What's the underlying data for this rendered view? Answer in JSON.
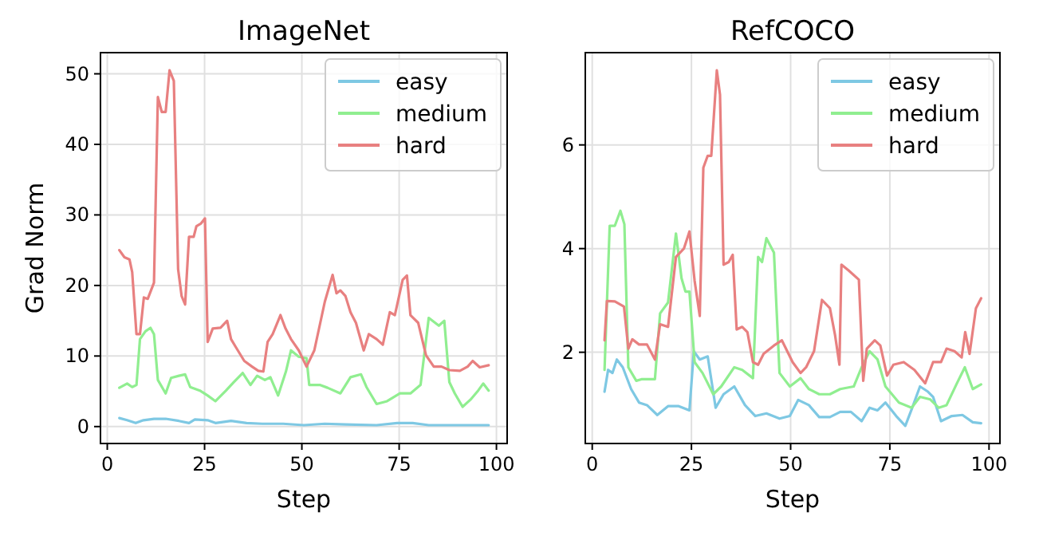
{
  "chart_data": [
    {
      "type": "line",
      "title": "ImageNet",
      "xlabel": "Step",
      "ylabel": "Grad Norm",
      "xlim": [
        -1.75,
        102.75
      ],
      "ylim": [
        -2.4,
        53
      ],
      "xticks": [
        0,
        25,
        50,
        75,
        100
      ],
      "yticks": [
        0,
        10,
        20,
        30,
        40,
        50
      ],
      "grid": true,
      "legend": "top right",
      "series": [
        {
          "name": "easy",
          "color": "#7ec8e3",
          "x": [
            3.1,
            5.1,
            7.3,
            9.3,
            12,
            15,
            18.4,
            21,
            22.5,
            25.8,
            27.8,
            31.8,
            35.8,
            39.8,
            45.2,
            50.5,
            55.9,
            61.2,
            69.2,
            74.5,
            78.5,
            82.6,
            90.6,
            98
          ],
          "values": [
            1.2,
            0.9,
            0.5,
            0.9,
            1.1,
            1.1,
            0.8,
            0.5,
            1,
            0.9,
            0.5,
            0.8,
            0.5,
            0.4,
            0.4,
            0.2,
            0.4,
            0.3,
            0.2,
            0.5,
            0.5,
            0.2,
            0.2,
            0.2
          ]
        },
        {
          "name": "medium",
          "color": "#90ee90",
          "x": [
            3.1,
            5.1,
            6.4,
            7.5,
            8.4,
            9.8,
            11.1,
            12,
            13,
            15,
            16.4,
            18.4,
            20,
            21.3,
            23.8,
            25.8,
            27.8,
            30.5,
            32.5,
            34.8,
            36.8,
            38.5,
            40.5,
            41.9,
            43.9,
            45.9,
            47.2,
            49.2,
            51.2,
            51.9,
            54.6,
            56.6,
            59.9,
            62.5,
            65.2,
            66.6,
            69.2,
            71.9,
            75.2,
            77.9,
            80.5,
            82.6,
            85.2,
            86.6,
            87.9,
            89.3,
            91.3,
            93.3,
            95.3,
            96.6,
            98
          ],
          "values": [
            5.5,
            6.1,
            5.6,
            5.9,
            12.4,
            13.5,
            14,
            13.1,
            6.6,
            4.7,
            6.9,
            7.2,
            7.4,
            5.6,
            5.1,
            4.4,
            3.6,
            5.1,
            6.3,
            7.6,
            5.9,
            7.2,
            6.6,
            7,
            4.4,
            7.8,
            10.8,
            9.9,
            9.7,
            5.9,
            5.9,
            5.5,
            4.7,
            7,
            7.4,
            5.6,
            3.2,
            3.6,
            4.7,
            4.7,
            5.9,
            15.4,
            14.3,
            15,
            6.3,
            4.7,
            2.8,
            3.8,
            5.1,
            6.1,
            5.1
          ]
        },
        {
          "name": "hard",
          "color": "#e88080",
          "x": [
            3.1,
            4.4,
            5.7,
            6.4,
            7.5,
            8.4,
            9.4,
            10.4,
            12,
            13,
            14,
            15,
            16,
            17.1,
            18.2,
            19.1,
            20,
            21,
            22.2,
            22.9,
            24.1,
            25.1,
            25.8,
            27.1,
            29.1,
            30.8,
            31.8,
            33.1,
            35.2,
            37.2,
            38.8,
            40.1,
            41.2,
            42.5,
            44.5,
            45.8,
            47.2,
            49.2,
            51.2,
            53.2,
            55.9,
            57.9,
            58.9,
            59.9,
            61.2,
            62.5,
            63.9,
            65.9,
            67.2,
            69.2,
            70.8,
            72.6,
            73.9,
            75.9,
            77,
            77.9,
            79.9,
            81.9,
            83.9,
            85.9,
            87.9,
            90.6,
            92.6,
            93.9,
            95.7,
            98
          ],
          "values": [
            25,
            24,
            23.7,
            21.9,
            13.1,
            13.1,
            18.3,
            18.1,
            20.4,
            46.7,
            44.6,
            44.6,
            50.5,
            49,
            22.3,
            18.5,
            17.3,
            26.9,
            26.9,
            28.4,
            28.8,
            29.5,
            12,
            13.9,
            14,
            15,
            12.4,
            11.2,
            9.3,
            8.5,
            7.9,
            7.8,
            12,
            13.1,
            15.8,
            13.9,
            12.4,
            10.8,
            8.5,
            10.8,
            17.7,
            21.5,
            18.9,
            19.3,
            18.5,
            16.2,
            14.7,
            10.8,
            13.1,
            12.4,
            11.6,
            16.2,
            15.8,
            20.8,
            21.4,
            15.8,
            14.7,
            10.1,
            8.5,
            8.5,
            8,
            7.9,
            8.5,
            9.3,
            8.4,
            8.7
          ]
        }
      ]
    },
    {
      "type": "line",
      "title": "RefCOCO",
      "xlabel": "Step",
      "xlim": [
        -1.75,
        102.75
      ],
      "ylim": [
        0.24,
        7.78
      ],
      "xticks": [
        0,
        25,
        50,
        75,
        100
      ],
      "yticks": [
        2,
        4,
        6
      ],
      "grid": true,
      "legend": "top right",
      "series": [
        {
          "name": "easy",
          "color": "#7ec8e3",
          "x": [
            3.1,
            4,
            5.1,
            6.2,
            7.7,
            9.8,
            11.8,
            13.8,
            16.4,
            19.1,
            21.8,
            24.5,
            25.6,
            27.1,
            29.1,
            31.1,
            33.1,
            35.8,
            38.5,
            41.1,
            43.9,
            47.2,
            49.8,
            51.9,
            54.6,
            57.2,
            59.9,
            62.5,
            65.2,
            67.9,
            69.9,
            71.9,
            73.9,
            76.6,
            78.9,
            80.5,
            82.6,
            84.6,
            85.9,
            87.9,
            90.6,
            93.3,
            95.9,
            98
          ],
          "values": [
            1.24,
            1.66,
            1.6,
            1.86,
            1.71,
            1.29,
            1.03,
            0.98,
            0.79,
            0.96,
            0.96,
            0.88,
            2.02,
            1.86,
            1.92,
            0.93,
            1.19,
            1.34,
            0.98,
            0.77,
            0.82,
            0.72,
            0.77,
            1.08,
            0.98,
            0.75,
            0.75,
            0.85,
            0.85,
            0.67,
            0.93,
            0.88,
            1.03,
            0.77,
            0.58,
            0.9,
            1.34,
            1.24,
            1.14,
            0.67,
            0.77,
            0.79,
            0.65,
            0.63
          ]
        },
        {
          "name": "medium",
          "color": "#90ee90",
          "x": [
            3.1,
            4.4,
            5.7,
            7.1,
            8.1,
            9.1,
            11.1,
            12.4,
            15.8,
            17.1,
            19.1,
            21.1,
            22.5,
            23.5,
            24.5,
            25.8,
            27.8,
            30.5,
            32.5,
            35.8,
            37.8,
            40.5,
            41.8,
            42.8,
            43.9,
            45.8,
            47.2,
            49.8,
            52.5,
            54.6,
            57.2,
            59.9,
            62.5,
            65.9,
            67.9,
            69.9,
            71.9,
            73.9,
            77.3,
            80.5,
            82.6,
            85.2,
            87.3,
            89.3,
            91.9,
            93.9,
            95.9,
            98
          ],
          "values": [
            1.66,
            4.44,
            4.44,
            4.73,
            4.47,
            1.71,
            1.45,
            1.48,
            1.48,
            2.75,
            2.96,
            4.29,
            3.43,
            3.17,
            3.17,
            1.81,
            1.6,
            1.19,
            1.34,
            1.71,
            1.66,
            1.5,
            3.84,
            3.74,
            4.2,
            3.92,
            1.6,
            1.34,
            1.5,
            1.29,
            1.19,
            1.19,
            1.29,
            1.34,
            1.71,
            2.02,
            1.86,
            1.34,
            1.03,
            0.93,
            1.14,
            1.09,
            0.93,
            0.98,
            1.4,
            1.71,
            1.29,
            1.38
          ]
        },
        {
          "name": "hard",
          "color": "#e88080",
          "x": [
            3.1,
            3.7,
            5.7,
            8,
            9.1,
            10.1,
            11.8,
            13.8,
            15.8,
            17.1,
            19.1,
            21.1,
            23.1,
            24.5,
            25.8,
            27.1,
            28,
            29.1,
            30,
            31.4,
            32.2,
            33.1,
            34.4,
            35.4,
            36.4,
            37.8,
            39.1,
            40.5,
            41.8,
            43.2,
            45.8,
            47.8,
            50.5,
            52.5,
            53.9,
            55.9,
            57.9,
            59.9,
            61.2,
            62.3,
            62.8,
            64.6,
            67.2,
            68.3,
            69.2,
            71.2,
            72.6,
            74.3,
            75.9,
            78.5,
            81.2,
            83.9,
            85.9,
            87.9,
            89.3,
            91.3,
            93.1,
            94,
            95.1,
            96.7,
            98
          ],
          "values": [
            2.23,
            2.99,
            2.98,
            2.88,
            2.07,
            2.25,
            2.15,
            2.15,
            1.86,
            2.54,
            2.49,
            3.84,
            4,
            4.33,
            3.38,
            2.7,
            5.56,
            5.79,
            5.79,
            7.44,
            6.97,
            3.69,
            3.74,
            3.88,
            2.44,
            2.49,
            2.39,
            1.81,
            1.76,
            1.97,
            2.13,
            2.23,
            1.81,
            1.6,
            1.71,
            2.02,
            3.01,
            2.85,
            2.33,
            1.76,
            3.69,
            3.58,
            3.4,
            1.45,
            2.07,
            2.23,
            2.13,
            1.55,
            1.76,
            1.81,
            1.66,
            1.4,
            1.81,
            1.81,
            2.07,
            2.02,
            1.9,
            2.39,
            1.97,
            2.85,
            3.04
          ]
        }
      ]
    }
  ]
}
